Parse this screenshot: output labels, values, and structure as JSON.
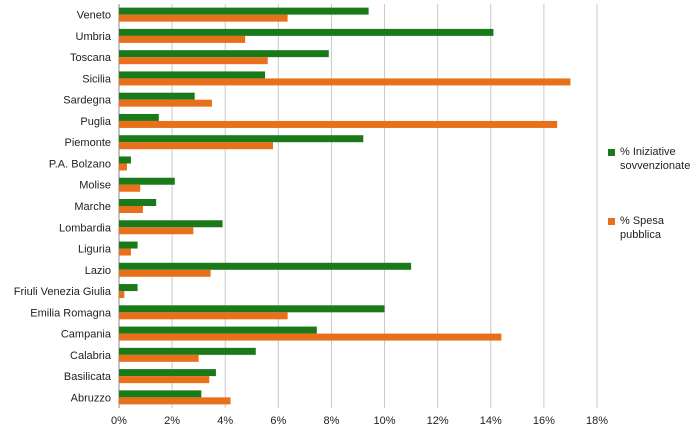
{
  "chart_data": {
    "type": "bar",
    "orientation": "horizontal",
    "categories": [
      "Veneto",
      "Umbria",
      "Toscana",
      "Sicilia",
      "Sardegna",
      "Puglia",
      "Piemonte",
      "P.A. Bolzano",
      "Molise",
      "Marche",
      "Lombardia",
      "Liguria",
      "Lazio",
      "Friuli Venezia Giulia",
      "Emilia Romagna",
      "Campania",
      "Calabria",
      "Basilicata",
      "Abruzzo"
    ],
    "series": [
      {
        "name": "% Iniziative sovvenzionate",
        "color": "#1a7a1a",
        "values": [
          9.4,
          14.1,
          7.9,
          5.5,
          2.85,
          1.5,
          9.2,
          0.45,
          2.1,
          1.4,
          3.9,
          0.7,
          11.0,
          0.7,
          10.0,
          7.45,
          5.15,
          3.65,
          3.1
        ]
      },
      {
        "name": "% Spesa pubblica",
        "color": "#e8701a",
        "values": [
          6.35,
          4.75,
          5.6,
          17.0,
          3.5,
          16.5,
          5.8,
          0.3,
          0.8,
          0.9,
          2.8,
          0.45,
          3.45,
          0.2,
          6.35,
          14.4,
          3.0,
          3.4,
          4.2
        ]
      }
    ],
    "xlim": [
      0,
      18
    ],
    "xticks": [
      "0%",
      "2%",
      "4%",
      "6%",
      "8%",
      "10%",
      "12%",
      "14%",
      "16%",
      "18%"
    ],
    "grid": true,
    "legend_position": "right"
  }
}
